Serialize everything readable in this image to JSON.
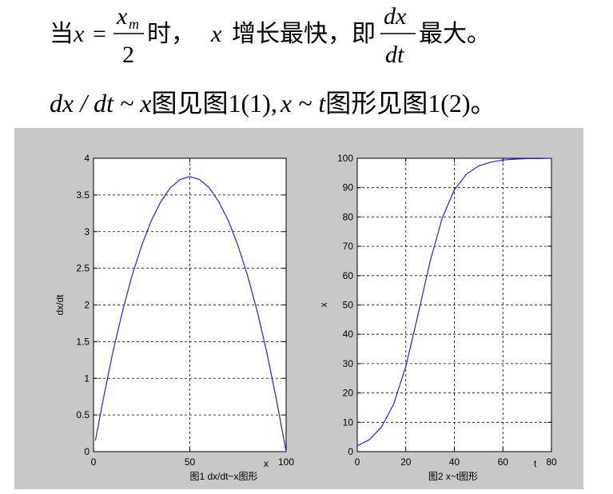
{
  "text": {
    "line1": {
      "lead": "当",
      "var": "x",
      "eq": "=",
      "frac1_num": "x",
      "frac1_sub": "m",
      "frac1_den": "2",
      "mid": "时，",
      "var2": "x",
      "rest": "增长最快，即",
      "frac2_num": "dx",
      "frac2_den": "dt",
      "end": "最大。"
    },
    "line2": {
      "expr1": "dx / dt ~ x",
      "text1": "图见图1(1),",
      "expr2": "x ~ t",
      "text2": "图形见图1(2)。"
    }
  },
  "chart_data": [
    {
      "type": "line",
      "caption": "图1 dx/dt~x图形",
      "x_label": "x",
      "y_label": "dx/dt",
      "x": [
        1,
        5,
        10,
        15,
        20,
        25,
        30,
        35,
        40,
        45,
        50,
        55,
        60,
        65,
        70,
        75,
        80,
        85,
        90,
        95,
        100
      ],
      "series": [
        {
          "color": "#2020ff",
          "values": [
            0.15,
            0.71,
            1.35,
            1.91,
            2.4,
            2.81,
            3.15,
            3.41,
            3.6,
            3.71,
            3.75,
            3.71,
            3.6,
            3.41,
            3.15,
            2.81,
            2.4,
            1.91,
            1.35,
            0.71,
            0
          ]
        }
      ],
      "xlim": [
        0,
        100
      ],
      "ylim": [
        0,
        4
      ],
      "xticks": [
        0,
        50,
        100
      ],
      "yticks": [
        0,
        0.5,
        1,
        1.5,
        2,
        2.5,
        3,
        3.5,
        4
      ],
      "grid": true
    },
    {
      "type": "line",
      "caption": "图2 x~t图形",
      "x_label": "t",
      "y_label": "x",
      "x": [
        0,
        5,
        10,
        15,
        20,
        25,
        30,
        35,
        40,
        45,
        50,
        55,
        60,
        65,
        70,
        75,
        80
      ],
      "series": [
        {
          "color": "#2020ff",
          "values": [
            2,
            4.1,
            8.4,
            16.2,
            29.1,
            46.5,
            64.8,
            79.6,
            89.2,
            94.6,
            97.4,
            98.7,
            99.4,
            99.7,
            99.9,
            99.9,
            100
          ]
        }
      ],
      "xlim": [
        0,
        80
      ],
      "ylim": [
        0,
        100
      ],
      "xticks": [
        0,
        20,
        40,
        60,
        80
      ],
      "yticks": [
        0,
        10,
        20,
        30,
        40,
        50,
        60,
        70,
        80,
        90,
        100
      ],
      "grid": true
    }
  ]
}
